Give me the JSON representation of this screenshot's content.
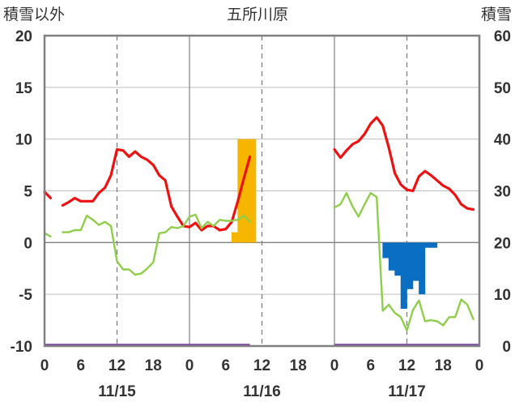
{
  "chart_data": {
    "type": "line",
    "title": "五所川原",
    "ylabel_left": "積雪以外",
    "ylabel_right": "積雪",
    "y_left_range": [
      -10,
      20
    ],
    "y_left_ticks": [
      "20",
      "15",
      "10",
      "5",
      "0",
      "-5",
      "-10"
    ],
    "y_right_range": [
      0,
      60
    ],
    "y_right_ticks": [
      "60",
      "50",
      "40",
      "30",
      "20",
      "10",
      "0"
    ],
    "x_range_hours": [
      0,
      72
    ],
    "x_tick_labels": [
      "0",
      "6",
      "12",
      "18",
      "0",
      "6",
      "12",
      "18",
      "0",
      "6",
      "12",
      "18",
      "0"
    ],
    "date_labels": [
      {
        "label": "11/15",
        "hour": 12
      },
      {
        "label": "11/16",
        "hour": 36
      },
      {
        "label": "11/17",
        "hour": 60
      }
    ],
    "colors": {
      "temperature": "#ee1111",
      "green_series": "#8fce4a",
      "precip_bars": "#f6b600",
      "snow_depth_change": "#0a6fc2",
      "baseline": "#7a3fa6",
      "frame": "#808080"
    },
    "series": [
      {
        "key": "temperature",
        "axis": "left",
        "points": [
          [
            0,
            4.9
          ],
          [
            1,
            4.3
          ],
          null,
          [
            3,
            3.6
          ],
          [
            4,
            3.9
          ],
          [
            5,
            4.3
          ],
          [
            6,
            4.0
          ],
          [
            7,
            4.0
          ],
          [
            8,
            4.0
          ],
          [
            9,
            4.8
          ],
          [
            10,
            5.3
          ],
          [
            11,
            6.5
          ],
          [
            12,
            9.0
          ],
          [
            13,
            8.9
          ],
          [
            14,
            8.3
          ],
          [
            15,
            8.8
          ],
          [
            16,
            8.3
          ],
          [
            17,
            8.0
          ],
          [
            18,
            7.5
          ],
          [
            19,
            6.5
          ],
          [
            20,
            6.0
          ],
          [
            21,
            3.5
          ],
          [
            22,
            2.5
          ],
          [
            23,
            1.6
          ],
          [
            24,
            1.5
          ],
          [
            25,
            1.9
          ],
          [
            26,
            1.2
          ],
          [
            27,
            1.6
          ],
          [
            28,
            1.6
          ],
          [
            29,
            1.2
          ],
          [
            30,
            1.3
          ],
          [
            31,
            2.0
          ],
          [
            32,
            4.0
          ],
          [
            33,
            6.2
          ],
          [
            34,
            8.3
          ],
          null,
          [
            48,
            9.0
          ],
          [
            49,
            8.2
          ],
          [
            50,
            8.9
          ],
          [
            51,
            9.5
          ],
          [
            52,
            9.8
          ],
          [
            53,
            10.5
          ],
          [
            54,
            11.5
          ],
          [
            55,
            12.1
          ],
          [
            56,
            11.3
          ],
          [
            57,
            9.2
          ],
          [
            58,
            6.7
          ],
          [
            59,
            5.6
          ],
          [
            60,
            5.1
          ],
          [
            61,
            5.0
          ],
          [
            62,
            6.4
          ],
          [
            63,
            6.9
          ],
          [
            64,
            6.5
          ],
          [
            65,
            6.0
          ],
          [
            66,
            5.5
          ],
          [
            67,
            5.2
          ],
          [
            68,
            4.6
          ],
          [
            69,
            3.7
          ],
          [
            70,
            3.3
          ],
          [
            71,
            3.2
          ]
        ]
      },
      {
        "key": "green_series",
        "axis": "left",
        "points": [
          [
            0,
            0.9
          ],
          [
            1,
            0.6
          ],
          null,
          [
            3,
            1.0
          ],
          [
            4,
            1.0
          ],
          [
            5,
            1.2
          ],
          [
            6,
            1.2
          ],
          [
            7,
            2.6
          ],
          [
            8,
            2.2
          ],
          [
            9,
            1.7
          ],
          [
            10,
            2.0
          ],
          [
            11,
            1.6
          ],
          [
            12,
            -1.8
          ],
          [
            13,
            -2.6
          ],
          [
            14,
            -2.6
          ],
          [
            15,
            -3.1
          ],
          [
            16,
            -3.0
          ],
          [
            17,
            -2.5
          ],
          [
            18,
            -1.9
          ],
          [
            19,
            0.9
          ],
          [
            20,
            1.0
          ],
          [
            21,
            1.5
          ],
          [
            22,
            1.4
          ],
          [
            23,
            1.6
          ],
          [
            24,
            2.5
          ],
          [
            25,
            2.7
          ],
          [
            26,
            1.4
          ],
          [
            27,
            2.0
          ],
          [
            28,
            1.6
          ],
          [
            29,
            2.2
          ],
          [
            30,
            2.1
          ],
          [
            31,
            2.1
          ],
          [
            32,
            2.2
          ],
          [
            33,
            2.6
          ],
          [
            34,
            2.0
          ],
          null,
          [
            48,
            3.4
          ],
          [
            49,
            3.7
          ],
          [
            50,
            4.8
          ],
          [
            51,
            3.5
          ],
          [
            52,
            2.5
          ],
          [
            53,
            3.7
          ],
          [
            54,
            4.8
          ],
          [
            55,
            4.4
          ],
          [
            56,
            -6.6
          ],
          [
            57,
            -6.0
          ],
          [
            58,
            -6.8
          ],
          [
            59,
            -7.2
          ],
          [
            60,
            -8.5
          ],
          [
            61,
            -6.5
          ],
          [
            62,
            -5.6
          ],
          [
            63,
            -7.6
          ],
          [
            64,
            -7.5
          ],
          [
            65,
            -7.6
          ],
          [
            66,
            -8.0
          ],
          [
            67,
            -7.2
          ],
          [
            68,
            -7.2
          ],
          [
            69,
            -5.5
          ],
          [
            70,
            -6.0
          ],
          [
            71,
            -7.4
          ]
        ]
      }
    ],
    "bars": {
      "key": "precip_bars",
      "axis": "left",
      "from": 0,
      "data": [
        [
          31,
          1
        ],
        [
          32,
          10
        ],
        [
          33,
          10
        ],
        [
          34,
          10
        ]
      ]
    },
    "snow_bars": {
      "key": "snow_depth_change",
      "axis": "left",
      "from": 0,
      "data": [
        [
          56,
          -1.5
        ],
        [
          57,
          -2.7
        ],
        [
          58,
          -3.2
        ],
        [
          59,
          -6.4
        ],
        [
          60,
          -4.5
        ],
        [
          61,
          -3.7
        ],
        [
          62,
          -5.0
        ],
        [
          63,
          -0.5
        ],
        [
          64,
          -0.5
        ]
      ]
    },
    "baseline_segments": [
      [
        0,
        34
      ],
      [
        48,
        72
      ]
    ],
    "baseline_value": -10,
    "grid": {
      "vertical_dashed_hours": [
        12,
        36,
        60
      ],
      "vertical_solid_hours": [
        24,
        48
      ]
    }
  }
}
